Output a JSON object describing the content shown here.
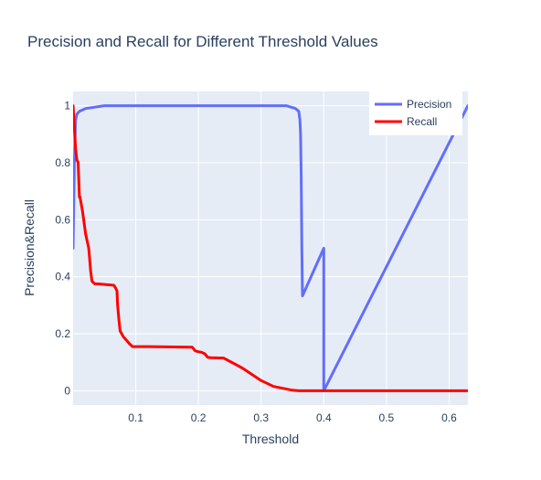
{
  "chart_data": {
    "type": "line",
    "title": "Precision and Recall for Different Threshold Values",
    "xlabel": "Threshold",
    "ylabel": "Precision&Recall",
    "xlim": [
      0.0,
      0.63
    ],
    "ylim": [
      -0.05,
      1.05
    ],
    "x_ticks": [
      0.1,
      0.2,
      0.3,
      0.4,
      0.5,
      0.6
    ],
    "x_tick_labels": [
      "0.1",
      "0.2",
      "0.3",
      "0.4",
      "0.5",
      "0.6"
    ],
    "y_ticks": [
      0,
      0.2,
      0.4,
      0.6,
      0.8,
      1
    ],
    "y_tick_labels": [
      "0",
      "0.2",
      "0.4",
      "0.6",
      "0.8",
      "1"
    ],
    "grid": true,
    "legend_position": "top-right",
    "series": [
      {
        "name": "Precision",
        "color": "#636efa",
        "x": [
          0.0,
          0.002,
          0.004,
          0.006,
          0.01,
          0.02,
          0.05,
          0.1,
          0.2,
          0.3,
          0.34,
          0.355,
          0.36,
          0.362,
          0.363,
          0.364,
          0.365,
          0.366,
          0.4,
          0.4,
          0.63
        ],
        "y": [
          0.5,
          0.8,
          0.95,
          0.97,
          0.98,
          0.99,
          1.0,
          1.0,
          1.0,
          1.0,
          1.0,
          0.99,
          0.98,
          0.95,
          0.9,
          0.75,
          0.5,
          0.333,
          0.5,
          0.0,
          1.0
        ]
      },
      {
        "name": "Recall",
        "color": "#ff0000",
        "x": [
          0.0,
          0.002,
          0.004,
          0.006,
          0.008,
          0.01,
          0.011,
          0.015,
          0.02,
          0.025,
          0.028,
          0.03,
          0.032,
          0.035,
          0.04,
          0.05,
          0.065,
          0.068,
          0.07,
          0.071,
          0.073,
          0.075,
          0.08,
          0.09,
          0.095,
          0.1,
          0.12,
          0.15,
          0.19,
          0.195,
          0.2,
          0.205,
          0.21,
          0.215,
          0.22,
          0.24,
          0.27,
          0.3,
          0.32,
          0.35,
          0.36,
          0.4,
          0.63
        ],
        "y": [
          1.0,
          0.92,
          0.85,
          0.81,
          0.8,
          0.68,
          0.68,
          0.63,
          0.55,
          0.5,
          0.42,
          0.385,
          0.38,
          0.375,
          0.375,
          0.373,
          0.37,
          0.36,
          0.35,
          0.3,
          0.25,
          0.21,
          0.19,
          0.165,
          0.155,
          0.155,
          0.155,
          0.154,
          0.153,
          0.14,
          0.137,
          0.135,
          0.13,
          0.117,
          0.116,
          0.115,
          0.08,
          0.036,
          0.015,
          0.002,
          0.0,
          0.0,
          0.0
        ]
      }
    ]
  }
}
